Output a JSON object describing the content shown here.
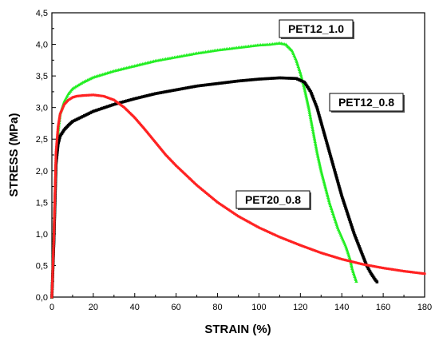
{
  "chart_data": {
    "type": "scatter",
    "xlabel": "STRAIN (%)",
    "ylabel": "STRESS (MPa)",
    "xlim": [
      0,
      180
    ],
    "ylim": [
      0,
      4.5
    ],
    "x_ticks": [
      "0",
      "20",
      "40",
      "60",
      "80",
      "100",
      "120",
      "140",
      "160",
      "180"
    ],
    "y_ticks": [
      "0,0",
      "0,5",
      "1,0",
      "1,5",
      "2,0",
      "2,5",
      "3,0",
      "3,5",
      "4,0",
      "4,5"
    ],
    "grid": false,
    "series": [
      {
        "name": "PET12_1.0",
        "color": "#22ee22",
        "marker": "triangle",
        "x": [
          0,
          1,
          2,
          3,
          4,
          6,
          8,
          10,
          15,
          20,
          30,
          40,
          50,
          60,
          70,
          80,
          90,
          100,
          105,
          110,
          113,
          116,
          118,
          120,
          122,
          124,
          126,
          128,
          130,
          132,
          134,
          136,
          138,
          140,
          142,
          144,
          145,
          146,
          147
        ],
        "y": [
          0.0,
          1.0,
          2.15,
          2.6,
          2.9,
          3.1,
          3.22,
          3.3,
          3.4,
          3.48,
          3.58,
          3.66,
          3.74,
          3.8,
          3.86,
          3.91,
          3.95,
          3.99,
          4.0,
          4.02,
          4.0,
          3.9,
          3.75,
          3.55,
          3.3,
          3.0,
          2.65,
          2.3,
          2.0,
          1.75,
          1.5,
          1.3,
          1.1,
          0.95,
          0.8,
          0.6,
          0.45,
          0.35,
          0.25
        ]
      },
      {
        "name": "PET12_0.8",
        "color": "#000000",
        "marker": "square",
        "x": [
          0,
          1,
          2,
          3,
          4,
          6,
          8,
          10,
          15,
          20,
          30,
          40,
          50,
          60,
          70,
          80,
          90,
          100,
          110,
          118,
          122,
          125,
          128,
          131,
          134,
          137,
          140,
          143,
          146,
          149,
          152,
          154,
          156,
          157
        ],
        "y": [
          0.0,
          0.9,
          2.1,
          2.42,
          2.55,
          2.65,
          2.72,
          2.78,
          2.86,
          2.94,
          3.05,
          3.14,
          3.22,
          3.28,
          3.34,
          3.38,
          3.42,
          3.45,
          3.47,
          3.46,
          3.4,
          3.25,
          3.0,
          2.65,
          2.3,
          1.95,
          1.6,
          1.3,
          1.0,
          0.75,
          0.5,
          0.38,
          0.28,
          0.24
        ]
      },
      {
        "name": "PET20_0.8",
        "color": "#ff2222",
        "marker": "circle",
        "x": [
          0,
          1,
          2,
          3,
          4,
          6,
          8,
          10,
          12,
          15,
          20,
          25,
          30,
          35,
          40,
          45,
          50,
          55,
          60,
          70,
          80,
          90,
          100,
          110,
          120,
          130,
          140,
          150,
          160,
          170,
          180
        ],
        "y": [
          0.0,
          1.0,
          2.3,
          2.7,
          2.9,
          3.05,
          3.12,
          3.16,
          3.18,
          3.19,
          3.2,
          3.18,
          3.12,
          3.0,
          2.84,
          2.65,
          2.45,
          2.25,
          2.08,
          1.77,
          1.5,
          1.28,
          1.1,
          0.95,
          0.82,
          0.7,
          0.6,
          0.52,
          0.46,
          0.41,
          0.37
        ]
      }
    ]
  }
}
